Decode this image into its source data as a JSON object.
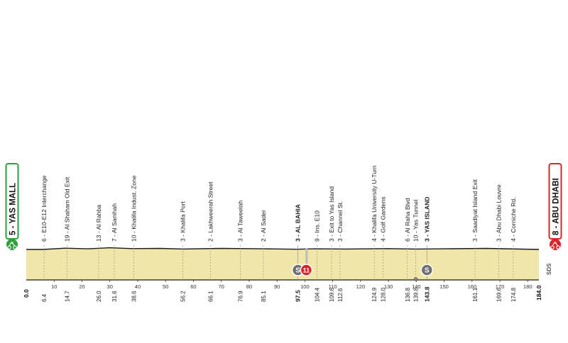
{
  "chart_data": {
    "type": "area",
    "xlim": [
      0,
      184
    ],
    "start": {
      "label": "5 - YAS MALL",
      "km": "0.0",
      "color": "#2e9e3e"
    },
    "finish": {
      "label": "8 - ABU DHABI",
      "km": "184.0",
      "color": "#d8242a"
    },
    "axis_ticks": [
      "10",
      "20",
      "30",
      "40",
      "50",
      "60",
      "70",
      "80",
      "90",
      "100",
      "110",
      "120",
      "130",
      "140",
      "150",
      "160",
      "170",
      "180"
    ],
    "waypoints": [
      {
        "km": "6.4",
        "label": "6 - E10-E12 Interchange",
        "bold": false
      },
      {
        "km": "14.7",
        "label": "19 - Al Shaham Old Exit",
        "bold": false
      },
      {
        "km": "26.0",
        "label": "13 - Al Rahba",
        "bold": false
      },
      {
        "km": "31.6",
        "label": "7 - Al Samhah",
        "bold": false
      },
      {
        "km": "38.6",
        "label": "10 - Khalifa Indust. Zone",
        "bold": false
      },
      {
        "km": "56.2",
        "label": "3 - Khalifa Port",
        "bold": false
      },
      {
        "km": "66.1",
        "label": "2 - Lakhweerah Street",
        "bold": false
      },
      {
        "km": "76.9",
        "label": "3 - Al Taweelah",
        "bold": false
      },
      {
        "km": "85.1",
        "label": "2 - Al Sader",
        "bold": false
      },
      {
        "km": "97.5",
        "label": "3 - AL BAHIA",
        "bold": true
      },
      {
        "km": "104.4",
        "label": "9 - Ins. E10",
        "bold": false
      },
      {
        "km": "109.6",
        "label": "3 - Exit to Yas Island",
        "bold": false
      },
      {
        "km": "112.6",
        "label": "3 - Channel St.",
        "bold": false
      },
      {
        "km": "124.9",
        "label": "4 - Khalifa University U-Turn",
        "bold": false
      },
      {
        "km": "128.0",
        "label": "4 - Golf Gardens",
        "bold": false
      },
      {
        "km": "136.8",
        "label": "6 - Al Raha Blvd",
        "bold": false
      },
      {
        "km": "139.8",
        "label": "10 - Yas Tunnel",
        "bold": false
      },
      {
        "km": "143.8",
        "label": "3 - YAS ISLAND",
        "bold": true
      },
      {
        "km": "161.1",
        "label": "3 - Saadiyat Island Exit",
        "bold": false
      },
      {
        "km": "169.6",
        "label": "3 - Abu Dhabi Louvre",
        "bold": false
      },
      {
        "km": "174.8",
        "label": "4 - Corniche Rd.",
        "bold": false
      }
    ],
    "markers": [
      {
        "km": 97.5,
        "type": "sprint",
        "symbol": "S"
      },
      {
        "km": 100.5,
        "type": "feed",
        "symbol": "11"
      },
      {
        "km": 143.8,
        "type": "sprint",
        "symbol": "S"
      },
      {
        "km": 139.8,
        "type": "tunnel",
        "symbol": ""
      }
    ],
    "logo_text": "SDS",
    "colors": {
      "fill": "#f0e6a8",
      "line": "#1a1a1a",
      "sprint": "#707070",
      "feed": "#d8242a"
    }
  }
}
